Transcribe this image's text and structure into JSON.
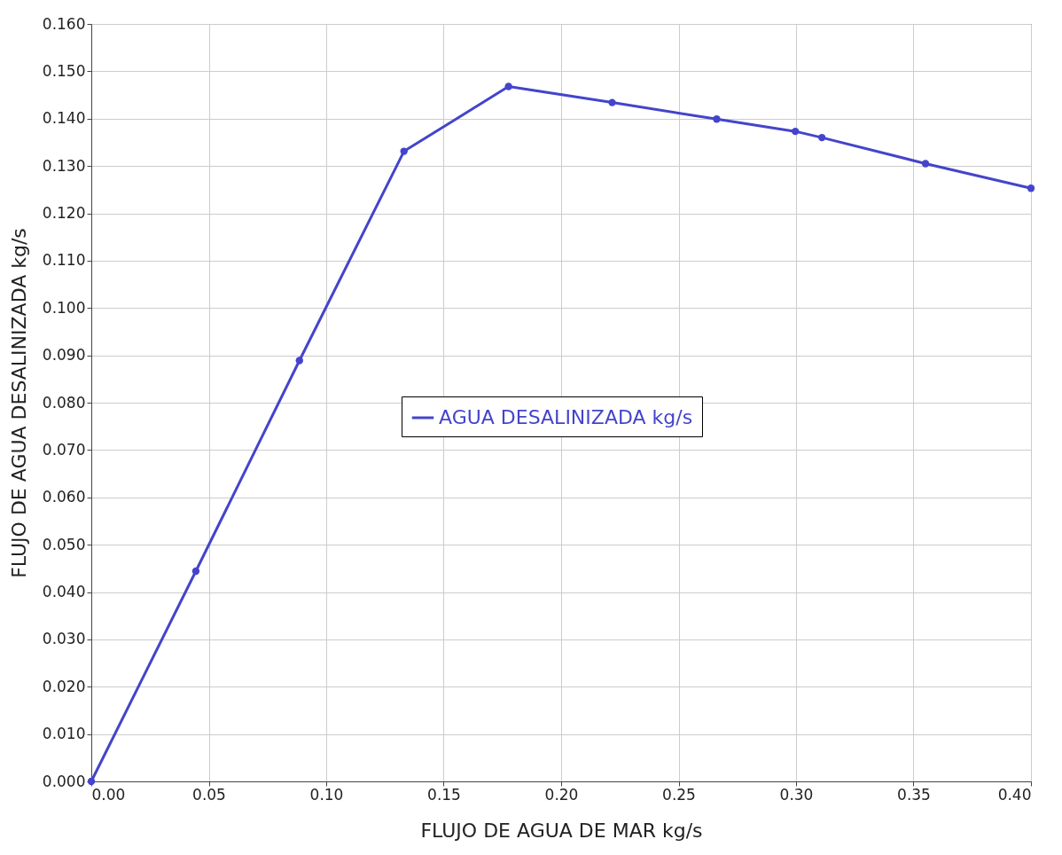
{
  "chart_data": {
    "type": "line",
    "xlabel": "FLUJO DE AGUA DE MAR kg/s",
    "ylabel": "FLUJO DE AGUA DESALINIZADA kg/s",
    "x": [
      0,
      0.0445,
      0.0886,
      0.1331,
      0.1776,
      0.2217,
      0.2662,
      0.2997,
      0.311,
      0.3551,
      0.4
    ],
    "series": [
      {
        "name": "AGUA DESALINIZADA kg/s",
        "color": "#4444cc",
        "values": [
          0,
          0.0444,
          0.0889,
          0.1331,
          0.1468,
          0.1434,
          0.1399,
          0.1373,
          0.136,
          0.1305,
          0.1253
        ]
      }
    ],
    "xlim": [
      0,
      0.4
    ],
    "xticks": [
      {
        "value": 0,
        "label": "0.00"
      },
      {
        "value": 0.05,
        "label": "0.05"
      },
      {
        "value": 0.1,
        "label": "0.10"
      },
      {
        "value": 0.15,
        "label": "0.15"
      },
      {
        "value": 0.2,
        "label": "0.20"
      },
      {
        "value": 0.25,
        "label": "0.25"
      },
      {
        "value": 0.3,
        "label": "0.30"
      },
      {
        "value": 0.35,
        "label": "0.35"
      },
      {
        "value": 0.4,
        "label": "0.40"
      }
    ],
    "ylim": [
      0,
      0.16
    ],
    "yticks": [
      {
        "value": 0,
        "label": "0.000"
      },
      {
        "value": 0.01,
        "label": "0.010"
      },
      {
        "value": 0.02,
        "label": "0.020"
      },
      {
        "value": 0.03,
        "label": "0.030"
      },
      {
        "value": 0.04,
        "label": "0.040"
      },
      {
        "value": 0.05,
        "label": "0.050"
      },
      {
        "value": 0.06,
        "label": "0.060"
      },
      {
        "value": 0.07,
        "label": "0.070"
      },
      {
        "value": 0.08,
        "label": "0.080"
      },
      {
        "value": 0.09,
        "label": "0.090"
      },
      {
        "value": 0.1,
        "label": "0.100"
      },
      {
        "value": 0.11,
        "label": "0.110"
      },
      {
        "value": 0.12,
        "label": "0.120"
      },
      {
        "value": 0.13,
        "label": "0.130"
      },
      {
        "value": 0.14,
        "label": "0.140"
      },
      {
        "value": 0.15,
        "label": "0.150"
      },
      {
        "value": 0.16,
        "label": "0.160"
      }
    ],
    "grid": true,
    "legend": "center",
    "marker": "circle",
    "line_style": "solid"
  }
}
